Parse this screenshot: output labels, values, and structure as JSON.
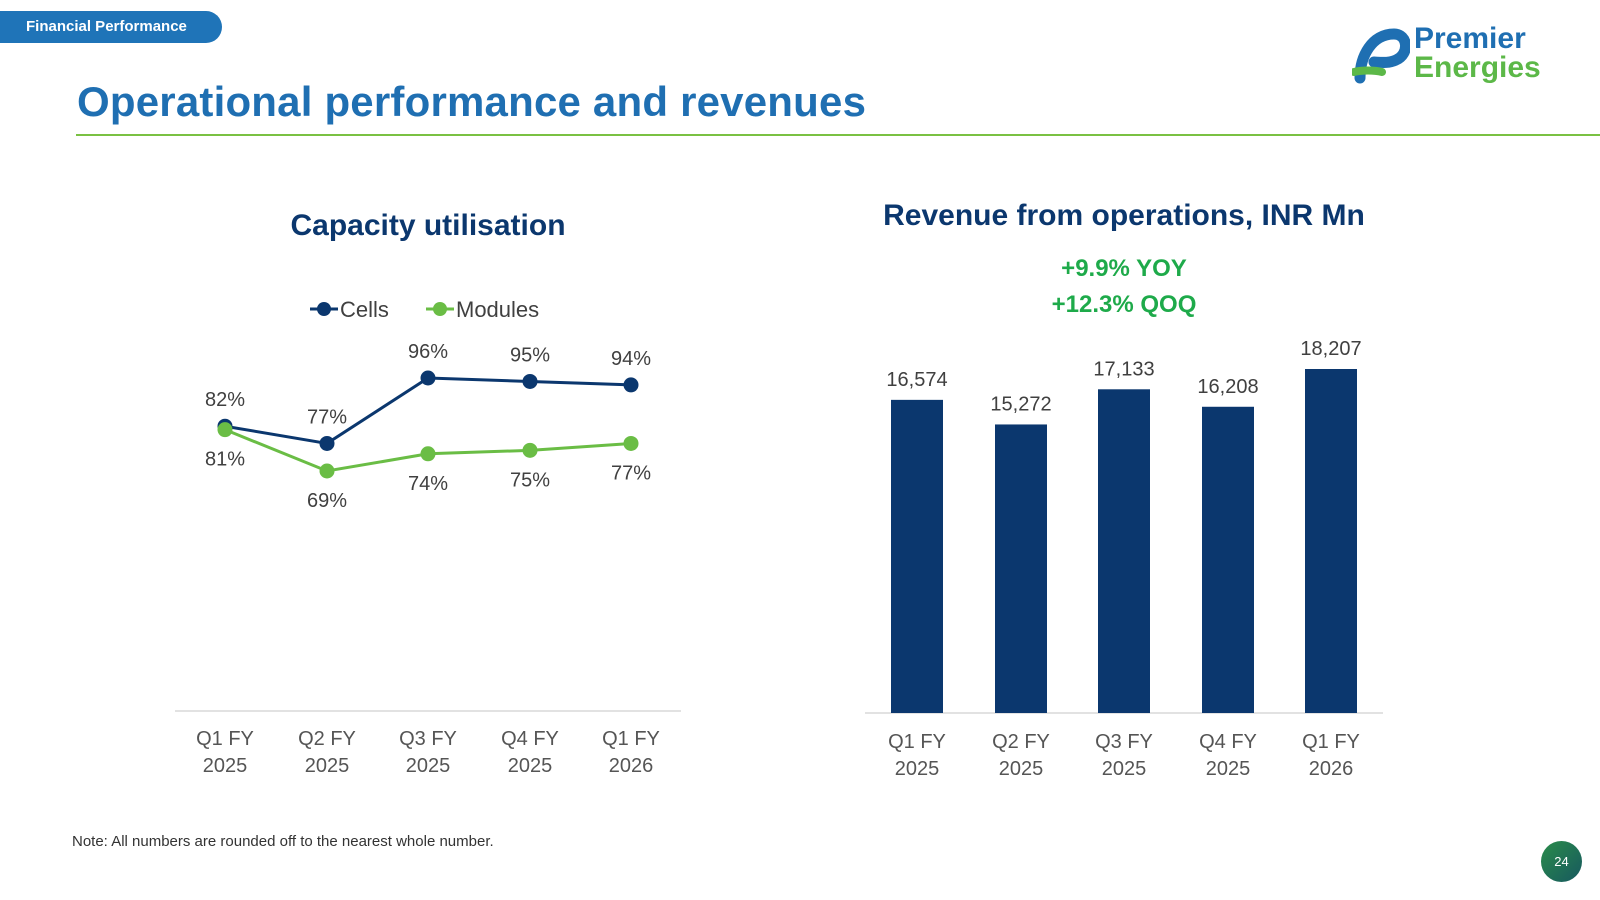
{
  "header": {
    "section_tag": "Financial Performance",
    "title": "Operational performance and revenues"
  },
  "logo": {
    "line1": "Premier",
    "line2": "Energies"
  },
  "colors": {
    "navy": "#0b376e",
    "green": "#6abd45",
    "blue": "#1f6fb2",
    "growth": "#1eaa4a"
  },
  "chart_data": [
    {
      "type": "line",
      "title": "Capacity utilisation",
      "categories": [
        [
          "Q1 FY",
          "2025"
        ],
        [
          "Q2 FY",
          "2025"
        ],
        [
          "Q3 FY",
          "2025"
        ],
        [
          "Q4 FY",
          "2025"
        ],
        [
          "Q1 FY",
          "2026"
        ]
      ],
      "series": [
        {
          "name": "Cells",
          "values": [
            82,
            77,
            96,
            95,
            94
          ],
          "labels": [
            "82%",
            "77%",
            "96%",
            "95%",
            "94%"
          ],
          "color": "#0b376e"
        },
        {
          "name": "Modules",
          "values": [
            81,
            69,
            74,
            75,
            77
          ],
          "labels": [
            "81%",
            "69%",
            "74%",
            "75%",
            "77%"
          ],
          "color": "#6abd45"
        }
      ],
      "ylim": [
        0,
        120
      ],
      "legend": "top-center",
      "grid": false
    },
    {
      "type": "bar",
      "title": "Revenue from operations, INR Mn",
      "annotations": [
        "+9.9% YOY",
        "+12.3% QOQ"
      ],
      "categories": [
        [
          "Q1 FY",
          "2025"
        ],
        [
          "Q2 FY",
          "2025"
        ],
        [
          "Q3 FY",
          "2025"
        ],
        [
          "Q4 FY",
          "2025"
        ],
        [
          "Q1 FY",
          "2026"
        ]
      ],
      "values": [
        16574,
        15272,
        17133,
        16208,
        18207
      ],
      "labels": [
        "16,574",
        "15,272",
        "17,133",
        "16,208",
        "18,207"
      ],
      "color": "#0b376e",
      "ylim": [
        0,
        18207
      ],
      "grid": false
    }
  ],
  "footer": {
    "note": "Note: All numbers are rounded off to the nearest whole number.",
    "page_number": "24"
  }
}
